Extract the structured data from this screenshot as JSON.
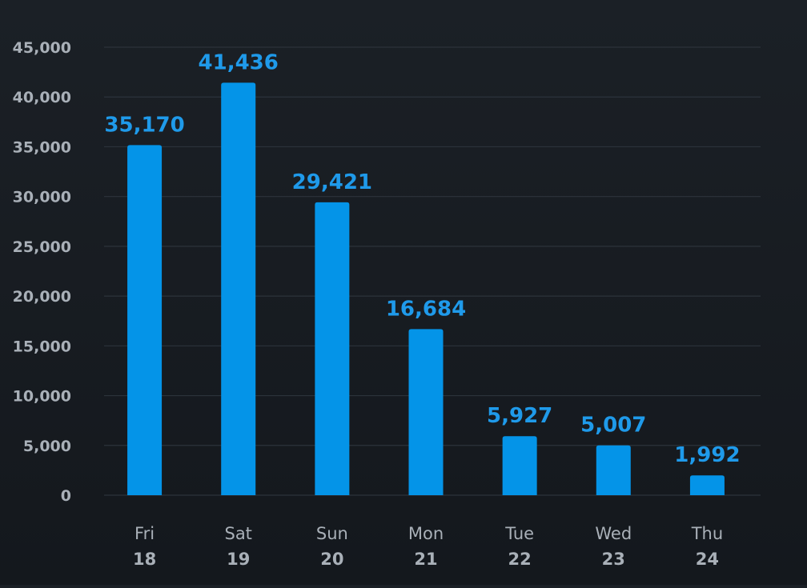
{
  "chart_data": {
    "type": "bar",
    "categories": [
      {
        "day": "Fri",
        "date": "18"
      },
      {
        "day": "Sat",
        "date": "19"
      },
      {
        "day": "Sun",
        "date": "20"
      },
      {
        "day": "Mon",
        "date": "21"
      },
      {
        "day": "Tue",
        "date": "22"
      },
      {
        "day": "Wed",
        "date": "23"
      },
      {
        "day": "Thu",
        "date": "24"
      }
    ],
    "values": [
      35170,
      41436,
      29421,
      16684,
      5927,
      5007,
      1992
    ],
    "value_labels": [
      "35,170",
      "41,436",
      "29,421",
      "16,684",
      "5,927",
      "5,007",
      "1,992"
    ],
    "y_ticks": [
      {
        "value": 0,
        "label": "0"
      },
      {
        "value": 5000,
        "label": "5,000"
      },
      {
        "value": 10000,
        "label": "10,000"
      },
      {
        "value": 15000,
        "label": "15,000"
      },
      {
        "value": 20000,
        "label": "20,000"
      },
      {
        "value": 25000,
        "label": "25,000"
      },
      {
        "value": 30000,
        "label": "30,000"
      },
      {
        "value": 35000,
        "label": "35,000"
      },
      {
        "value": 40000,
        "label": "40,000"
      },
      {
        "value": 45000,
        "label": "45,000"
      }
    ],
    "ylim": [
      0,
      45000
    ],
    "grid": true,
    "title": "",
    "xlabel": "",
    "ylabel": "",
    "colors": {
      "bar": "#0494e8",
      "value_label": "#1f9aea",
      "grid": "#2c333b",
      "axis_text": "#a9b0b8",
      "background": "#1a1f25"
    }
  }
}
